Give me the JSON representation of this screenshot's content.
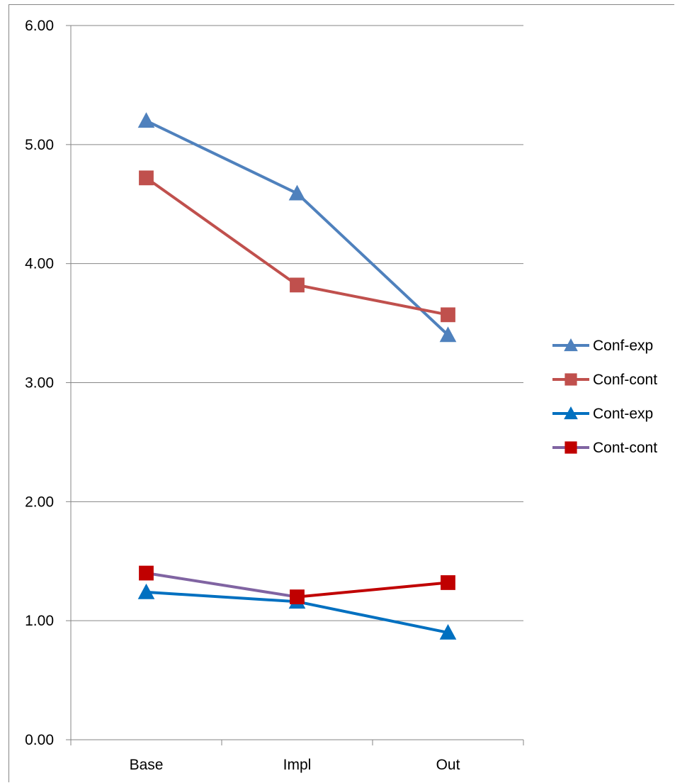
{
  "chart_data": {
    "type": "line",
    "categories": [
      "Base",
      "Impl",
      "Out"
    ],
    "ylim": [
      0,
      6
    ],
    "yticks": [
      "0.00",
      "1.00",
      "2.00",
      "3.00",
      "4.00",
      "5.00",
      "6.00"
    ],
    "grid": true,
    "legend_position": "right",
    "series": [
      {
        "name": "Conf-exp",
        "values": [
          5.2,
          4.59,
          3.4
        ],
        "color": "#4F81BD",
        "marker": "triangle",
        "line_color": "#4F81BD",
        "marker_color": "#4F81BD"
      },
      {
        "name": "Conf-cont",
        "values": [
          4.72,
          3.82,
          3.57
        ],
        "color": "#C0504D",
        "marker": "square",
        "line_color": "#C0504D",
        "marker_color": "#C0504D"
      },
      {
        "name": "Cont-exp",
        "values": [
          1.24,
          1.16,
          0.9
        ],
        "color": "#0070C0",
        "marker": "triangle",
        "line_color": "#0070C0",
        "marker_color": "#0070C0"
      },
      {
        "name": "Cont-cont",
        "values": [
          1.4,
          1.2,
          1.32
        ],
        "color": "#C00000",
        "marker": "square",
        "line_color": "#8064A2",
        "line_color_segment2": "#C00000",
        "marker_color": "#C00000"
      }
    ]
  }
}
